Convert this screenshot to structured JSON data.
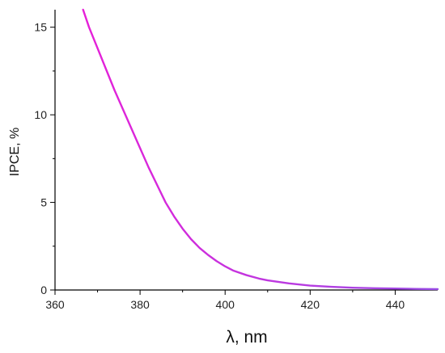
{
  "chart_data": {
    "type": "line",
    "title": "",
    "xlabel": "λ, nm",
    "ylabel": "IPCE, %",
    "xlim": [
      360,
      450
    ],
    "ylim": [
      0,
      16
    ],
    "x_ticks": [
      360,
      380,
      400,
      420,
      440
    ],
    "y_ticks": [
      0,
      5,
      10,
      15
    ],
    "x_tick_labels": [
      "360",
      "380",
      "400",
      "420",
      "440"
    ],
    "y_tick_labels": [
      "0",
      "5",
      "10",
      "15"
    ],
    "grid": false,
    "legend": "none",
    "series": [
      {
        "color_start": "#e620d8",
        "color_end": "#9a4ce6",
        "x": [
          366.6,
          368,
          370,
          372,
          374,
          376,
          378,
          380,
          382,
          384,
          386,
          388,
          390,
          392,
          394,
          396,
          398,
          400,
          402,
          405,
          408,
          410,
          415,
          420,
          425,
          430,
          435,
          440,
          445,
          450
        ],
        "y": [
          16.0,
          15.0,
          13.8,
          12.6,
          11.4,
          10.3,
          9.2,
          8.1,
          7.0,
          6.0,
          5.0,
          4.2,
          3.5,
          2.9,
          2.4,
          2.0,
          1.65,
          1.35,
          1.1,
          0.85,
          0.65,
          0.55,
          0.38,
          0.25,
          0.18,
          0.13,
          0.1,
          0.08,
          0.06,
          0.05
        ]
      }
    ]
  }
}
